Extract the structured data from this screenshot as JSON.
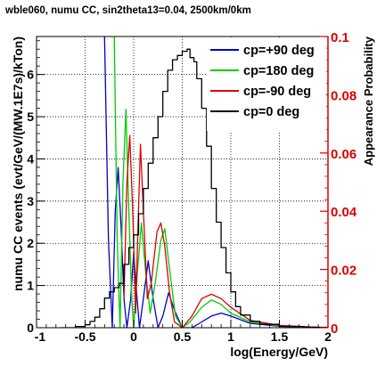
{
  "chart_data": {
    "type": "line",
    "title": "wble060, numu CC, sin2theta13=0.04, 2500km/0km",
    "xlabel": "log(Energy/GeV)",
    "ylabel": "numu CC events (evt/GeV/(MW.1E7s)/kTon)",
    "ylabel_right": "Appearance Probability",
    "xlim": [
      -1,
      2
    ],
    "ylim": [
      0,
      6.9
    ],
    "ylim_right": [
      0,
      0.1
    ],
    "x_ticks": [
      "-1",
      "-0.5",
      "0",
      "0.5",
      "1",
      "1.5",
      "2"
    ],
    "y_ticks": [
      "0",
      "1",
      "2",
      "3",
      "4",
      "5",
      "6"
    ],
    "y_ticks_right": [
      "0",
      "0.02",
      "0.04",
      "0.06",
      "0.08",
      "0.1"
    ],
    "grid": true,
    "legend_position": "top-right",
    "series": [
      {
        "name": "cp=+90 deg",
        "color": "#0000cc",
        "axis": "right",
        "points": [
          [
            -0.3,
            0.1
          ],
          [
            -0.26,
            0.03
          ],
          [
            -0.22,
            0.0
          ],
          [
            -0.19,
            0.04
          ],
          [
            -0.16,
            0.055
          ],
          [
            -0.13,
            0.035
          ],
          [
            -0.1,
            0.01
          ],
          [
            -0.07,
            0.0
          ],
          [
            -0.03,
            0.01
          ],
          [
            0.0,
            0.026
          ],
          [
            0.03,
            0.012
          ],
          [
            0.06,
            0.0
          ],
          [
            0.1,
            0.01
          ],
          [
            0.15,
            0.023
          ],
          [
            0.2,
            0.01
          ],
          [
            0.25,
            0.0
          ],
          [
            0.3,
            0.004
          ],
          [
            0.36,
            0.012
          ],
          [
            0.42,
            0.006
          ],
          [
            0.5,
            0.0
          ],
          [
            0.6,
            0.0
          ],
          [
            0.7,
            0.002
          ],
          [
            0.8,
            0.004
          ],
          [
            0.9,
            0.005
          ],
          [
            1.0,
            0.004
          ],
          [
            1.2,
            0.0015
          ],
          [
            1.5,
            0.0005
          ],
          [
            2.0,
            0.0
          ]
        ]
      },
      {
        "name": "cp=180 deg",
        "color": "#00cc00",
        "axis": "right",
        "points": [
          [
            -0.2,
            0.1
          ],
          [
            -0.17,
            0.03
          ],
          [
            -0.14,
            0.0
          ],
          [
            -0.11,
            0.05
          ],
          [
            -0.08,
            0.075
          ],
          [
            -0.05,
            0.04
          ],
          [
            -0.02,
            0.01
          ],
          [
            0.0,
            0.0
          ],
          [
            0.04,
            0.02
          ],
          [
            0.08,
            0.036
          ],
          [
            0.12,
            0.02
          ],
          [
            0.17,
            0.005
          ],
          [
            0.22,
            0.015
          ],
          [
            0.28,
            0.03
          ],
          [
            0.32,
            0.034
          ],
          [
            0.37,
            0.02
          ],
          [
            0.43,
            0.004
          ],
          [
            0.5,
            0.0
          ],
          [
            0.58,
            0.002
          ],
          [
            0.7,
            0.007
          ],
          [
            0.8,
            0.0095
          ],
          [
            0.9,
            0.008
          ],
          [
            1.0,
            0.005
          ],
          [
            1.2,
            0.002
          ],
          [
            1.5,
            0.0006
          ],
          [
            2.0,
            0.0
          ]
        ]
      },
      {
        "name": "cp=-90 deg",
        "color": "#dd0000",
        "axis": "right",
        "points": [
          [
            -0.1,
            0.01
          ],
          [
            -0.07,
            0.05
          ],
          [
            -0.04,
            0.066
          ],
          [
            -0.01,
            0.04
          ],
          [
            0.02,
            0.005
          ],
          [
            0.04,
            0.03
          ],
          [
            0.07,
            0.063
          ],
          [
            0.1,
            0.04
          ],
          [
            0.14,
            0.01
          ],
          [
            0.18,
            0.015
          ],
          [
            0.24,
            0.033
          ],
          [
            0.28,
            0.036
          ],
          [
            0.32,
            0.028
          ],
          [
            0.37,
            0.012
          ],
          [
            0.42,
            0.002
          ],
          [
            0.5,
            0.0
          ],
          [
            0.6,
            0.004
          ],
          [
            0.7,
            0.01
          ],
          [
            0.8,
            0.0115
          ],
          [
            0.9,
            0.01
          ],
          [
            1.0,
            0.007
          ],
          [
            1.2,
            0.0025
          ],
          [
            1.5,
            0.0008
          ],
          [
            2.0,
            0.0
          ]
        ]
      },
      {
        "name": "cp=0 deg",
        "color": "#000000",
        "axis": "left",
        "points": [
          [
            -0.75,
            0.0
          ],
          [
            -0.6,
            0.03
          ],
          [
            -0.5,
            0.07
          ],
          [
            -0.45,
            0.15
          ],
          [
            -0.4,
            0.25
          ],
          [
            -0.35,
            0.45
          ],
          [
            -0.3,
            0.7
          ],
          [
            -0.25,
            0.85
          ],
          [
            -0.2,
            0.95
          ],
          [
            -0.15,
            1.05
          ],
          [
            -0.1,
            1.5
          ],
          [
            -0.05,
            1.9
          ],
          [
            0.0,
            2.2
          ],
          [
            0.05,
            2.7
          ],
          [
            0.1,
            3.3
          ],
          [
            0.15,
            3.9
          ],
          [
            0.2,
            4.5
          ],
          [
            0.25,
            5.0
          ],
          [
            0.3,
            5.6
          ],
          [
            0.35,
            6.1
          ],
          [
            0.4,
            6.35
          ],
          [
            0.45,
            6.45
          ],
          [
            0.5,
            6.55
          ],
          [
            0.55,
            6.6
          ],
          [
            0.58,
            6.4
          ],
          [
            0.62,
            6.3
          ],
          [
            0.65,
            5.9
          ],
          [
            0.7,
            5.2
          ],
          [
            0.75,
            4.3
          ],
          [
            0.8,
            3.3
          ],
          [
            0.85,
            2.5
          ],
          [
            0.9,
            1.9
          ],
          [
            0.95,
            1.3
          ],
          [
            1.0,
            0.85
          ],
          [
            1.05,
            0.5
          ],
          [
            1.1,
            0.3
          ],
          [
            1.2,
            0.15
          ],
          [
            1.3,
            0.08
          ],
          [
            1.5,
            0.03
          ],
          [
            1.75,
            0.01
          ],
          [
            2.0,
            0.0
          ]
        ]
      }
    ]
  }
}
